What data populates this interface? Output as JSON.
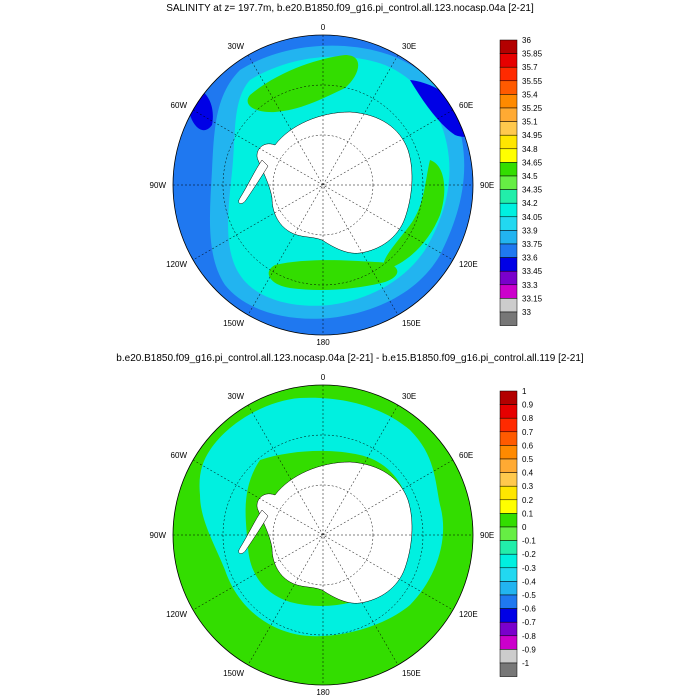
{
  "panels": [
    {
      "title": "SALINITY at z= 197.7m, b.e20.B1850.f09_g16.pi_control.all.123.nocasp.04a [2-21]",
      "colorbar_labels": [
        "36",
        "35.85",
        "35.7",
        "35.55",
        "35.4",
        "35.25",
        "35.1",
        "34.95",
        "34.8",
        "34.65",
        "34.5",
        "34.35",
        "34.2",
        "34.05",
        "33.9",
        "33.75",
        "33.6",
        "33.45",
        "33.3",
        "33.15",
        "33"
      ],
      "longitude_labels": {
        "n": "0",
        "ne": "30E",
        "ene": "60E",
        "e": "90E",
        "ese": "120E",
        "se": "150E",
        "s": "180",
        "sw": "150W",
        "wsw": "120W",
        "w": "90W",
        "wnw": "60W",
        "nw": "30W"
      }
    },
    {
      "title": "b.e20.B1850.f09_g16.pi_control.all.123.nocasp.04a [2-21] - b.e15.B1850.f09_g16.pi_control.all.119 [2-21]",
      "colorbar_labels": [
        "1",
        "0.9",
        "0.8",
        "0.7",
        "0.6",
        "0.5",
        "0.4",
        "0.3",
        "0.2",
        "0.1",
        "0",
        "-0.1",
        "-0.2",
        "-0.3",
        "-0.4",
        "-0.5",
        "-0.6",
        "-0.7",
        "-0.8",
        "-0.9",
        "-1"
      ],
      "longitude_labels": {
        "n": "0",
        "ne": "30E",
        "ene": "60E",
        "e": "90E",
        "ese": "120E",
        "se": "150E",
        "s": "180",
        "sw": "150W",
        "wsw": "120W",
        "w": "90W",
        "wnw": "60W",
        "nw": "30W"
      }
    }
  ],
  "colorbar_colors": [
    "#b30000",
    "#e60000",
    "#ff2a00",
    "#ff5a00",
    "#ff8a00",
    "#ffaa33",
    "#ffc94d",
    "#ffe600",
    "#ffff00",
    "#33dd00",
    "#66ee44",
    "#22eeaa",
    "#00f0e0",
    "#22d8f0",
    "#22b4f0",
    "#1f78f0",
    "#0000e6",
    "#7a00cc",
    "#cc00cc",
    "#cccccc",
    "#777777"
  ]
}
